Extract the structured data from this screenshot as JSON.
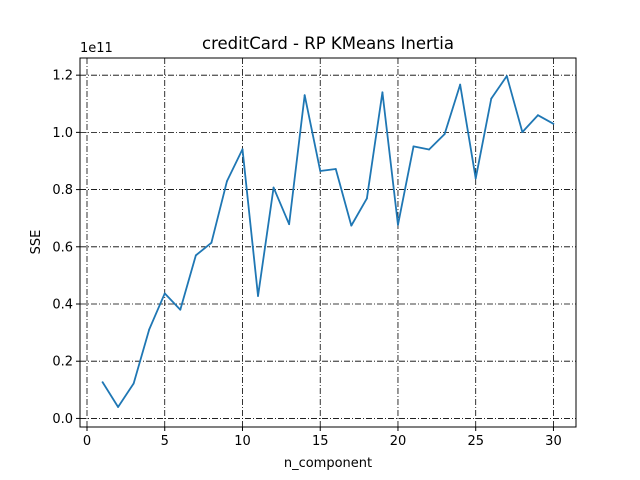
{
  "chart_data": {
    "type": "line",
    "title": "creditCard - RP KMeans Inertia",
    "xlabel": "n_component",
    "ylabel": "SSE",
    "y_offset_label": "1e11",
    "y_scale_factor": 100000000000,
    "xlim": [
      -0.45,
      31.45
    ],
    "ylim": [
      -3000000000.0,
      126000000000.0
    ],
    "x_ticks": [
      0,
      5,
      10,
      15,
      20,
      25,
      30
    ],
    "y_ticks": [
      0.0,
      20000000000.0,
      40000000000.0,
      60000000000.0,
      80000000000.0,
      100000000000.0,
      120000000000.0
    ],
    "y_tick_labels": [
      "0.0",
      "0.2",
      "0.4",
      "0.6",
      "0.8",
      "1.0",
      "1.2"
    ],
    "grid": true,
    "grid_style": "dashdot",
    "series": [
      {
        "color": "#1f77b4",
        "x": [
          1,
          2,
          3,
          4,
          5,
          6,
          7,
          8,
          9,
          10,
          11,
          12,
          13,
          14,
          15,
          16,
          17,
          18,
          19,
          20,
          21,
          22,
          23,
          24,
          25,
          26,
          27,
          28,
          29,
          30
        ],
        "y": [
          12700000000.0,
          4000000000.0,
          12200000000.0,
          31100000000.0,
          43700000000.0,
          38000000000.0,
          57000000000.0,
          61400000000.0,
          82900000000.0,
          94100000000.0,
          42800000000.0,
          80700000000.0,
          67900000000.0,
          113000000000.0,
          86500000000.0,
          87200000000.0,
          67400000000.0,
          76900000000.0,
          114000000000.0,
          67700000000.0,
          95100000000.0,
          94000000000.0,
          99400000000.0,
          116700000000.0,
          83900000000.0,
          111800000000.0,
          119700000000.0,
          100100000000.0,
          106000000000.0,
          103000000000.0
        ]
      }
    ]
  }
}
